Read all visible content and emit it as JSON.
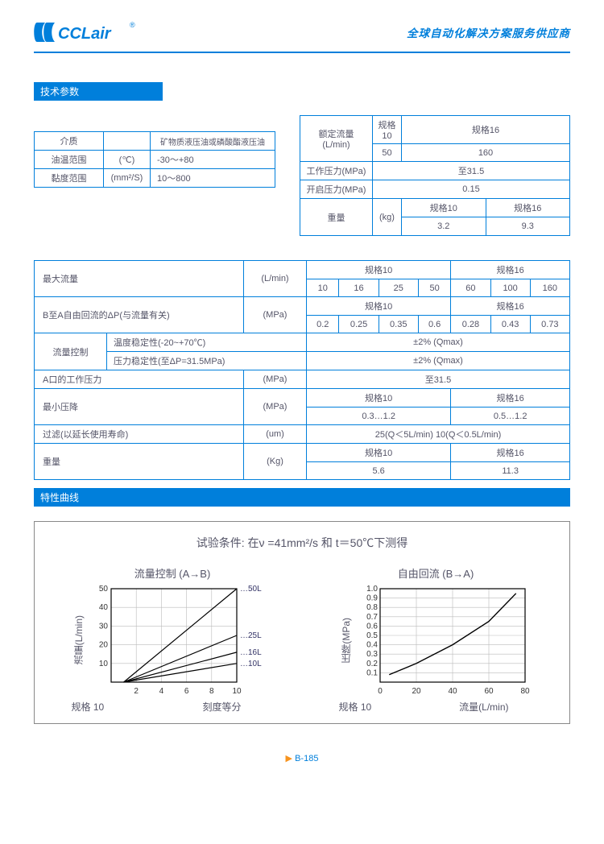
{
  "header": {
    "logo_text": "CCLair",
    "logo_color": "#007fdb",
    "tagline": "全球自动化解决方案服务供应商"
  },
  "section1_title": "技术参数",
  "table_left": {
    "rows": [
      [
        "介质",
        "",
        "矿物质液压油或磷酸酯液压油"
      ],
      [
        "油温范围",
        "(℃)",
        "-30～+80"
      ],
      [
        "黏度范围",
        "(mm²/S)",
        "10～800"
      ]
    ]
  },
  "table_right": {
    "r1": [
      "额定流量\n(L/min)",
      "规格10",
      "规格16"
    ],
    "r1v": [
      "50",
      "160"
    ],
    "r2": [
      "工作压力(MPa)",
      "至31.5"
    ],
    "r3": [
      "开启压力(MPa)",
      "0.15"
    ],
    "r4": [
      "重量",
      "(kg)",
      "规格10",
      "规格16"
    ],
    "r4v": [
      "3.2",
      "9.3"
    ]
  },
  "big_table": {
    "row1": {
      "label": "最大流量",
      "unit": "(L/min)",
      "h1": "规格10",
      "h2": "规格16",
      "cells": [
        "10",
        "16",
        "25",
        "50",
        "60",
        "100",
        "160"
      ]
    },
    "row2": {
      "label": "B至A自由回流的ΔP(与流量有关)",
      "unit": "(MPa)",
      "h1": "规格10",
      "h2": "规格16",
      "cells": [
        "0.2",
        "0.25",
        "0.35",
        "0.6",
        "0.28",
        "0.43",
        "0.73"
      ]
    },
    "row3": {
      "label": "流量控制",
      "sub1": "温度稳定性(-20~+70℃)",
      "sub2": "压力稳定性(至ΔP=31.5MPa)",
      "val1": "±2% (Qmax)",
      "val2": "±2% (Qmax)"
    },
    "row4": {
      "label": "A口的工作压力",
      "unit": "(MPa)",
      "val": "至31.5"
    },
    "row5": {
      "label": "最小压降",
      "unit": "(MPa)",
      "h1": "规格10",
      "h2": "规格16",
      "v1": "0.3…1.2",
      "v2": "0.5…1.2"
    },
    "row6": {
      "label": "过滤(以延长使用寿命)",
      "unit": "(um)",
      "val": "25(Q＜5L/min) 10(Q＜0.5L/min)"
    },
    "row7": {
      "label": "重量",
      "unit": "(Kg)",
      "h1": "规格10",
      "h2": "规格16",
      "v1": "5.6",
      "v2": "11.3"
    }
  },
  "section2_title": "特性曲线",
  "curve_title": "试验条件: 在ν =41mm²/s 和 t＝50℃下测得",
  "chart1": {
    "title": "流量控制 (A→B)",
    "ylabel": "流量(L/min)",
    "xlabel": "刻度等分",
    "spec": "规格 10",
    "xlim": [
      0,
      10
    ],
    "ylim": [
      0,
      50
    ],
    "xticks": [
      2,
      4,
      6,
      8,
      10
    ],
    "yticks": [
      10,
      20,
      30,
      40,
      50
    ],
    "line_labels": [
      "50L",
      "25L",
      "16L",
      "10L"
    ],
    "lines": [
      [
        [
          1,
          0
        ],
        [
          10,
          50
        ]
      ],
      [
        [
          1,
          0
        ],
        [
          10,
          25
        ]
      ],
      [
        [
          1,
          0
        ],
        [
          10,
          16
        ]
      ],
      [
        [
          1,
          0
        ],
        [
          10,
          10
        ]
      ]
    ],
    "colors": {
      "axis": "#000000",
      "grid": "#bbbbbb",
      "line": "#000000",
      "label": "#333366"
    },
    "line_width": 1.2,
    "tick_fontsize": 10
  },
  "chart2": {
    "title": "自由回流 (B→A)",
    "ylabel": "压降(MPa)",
    "xlabel": "流量(L/min)",
    "spec": "规格 10",
    "xlim": [
      0,
      80
    ],
    "ylim": [
      0,
      1.0
    ],
    "xticks": [
      20,
      40,
      60,
      80
    ],
    "yticks": [
      0.1,
      0.2,
      0.3,
      0.4,
      0.5,
      0.6,
      0.7,
      0.8,
      0.9,
      1.0
    ],
    "line": [
      [
        5,
        0.08
      ],
      [
        20,
        0.2
      ],
      [
        40,
        0.4
      ],
      [
        60,
        0.65
      ],
      [
        75,
        0.95
      ]
    ],
    "colors": {
      "axis": "#000000",
      "grid": "#bbbbbb",
      "line": "#000000"
    },
    "line_width": 1.4,
    "tick_fontsize": 10
  },
  "footer": {
    "arrow": "▶",
    "page": "B-185"
  }
}
